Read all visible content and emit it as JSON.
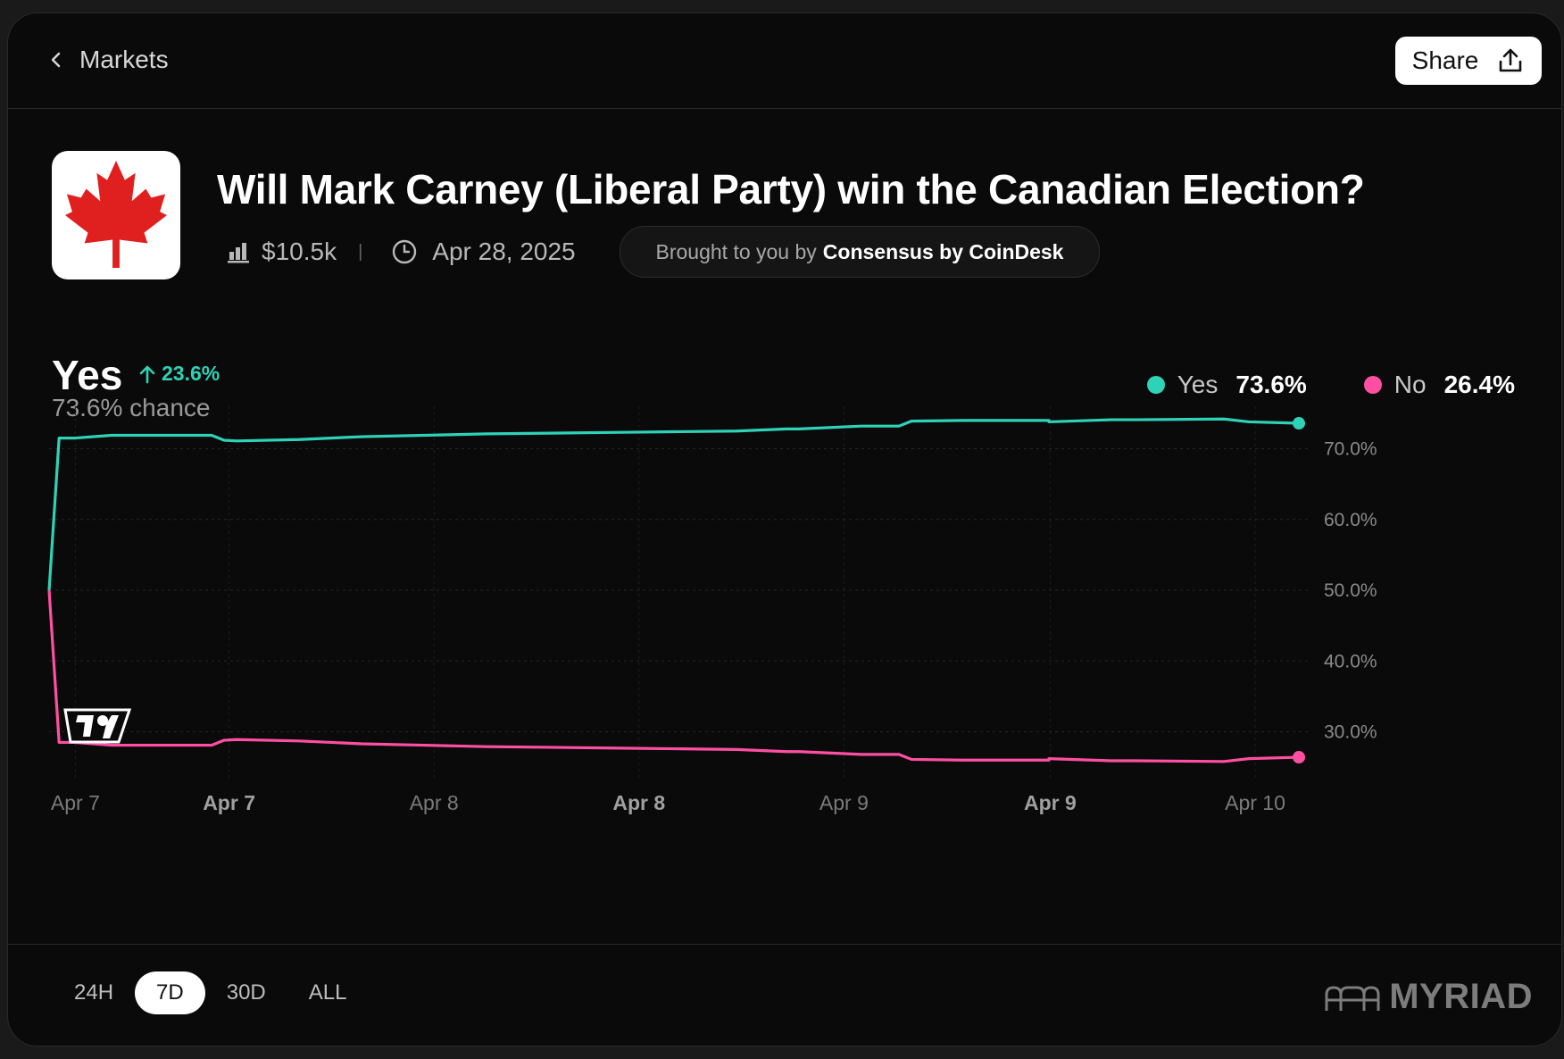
{
  "nav": {
    "back_label": "Markets",
    "share_label": "Share"
  },
  "market": {
    "title": "Will Mark Carney (Liberal Party) win the Canadian Election?",
    "volume": "$10.5k",
    "separator": "|",
    "end_date": "Apr 28, 2025",
    "sponsor_prefix": "Brought to you by",
    "sponsor_name": "Consensus by CoinDesk"
  },
  "summary": {
    "outcome": "Yes",
    "change": "23.6%",
    "chance": "73.6% chance"
  },
  "legend": [
    {
      "label": "Yes",
      "value": "73.6%",
      "color": "#2ed3b7"
    },
    {
      "label": "No",
      "value": "26.4%",
      "color": "#ff4fa3"
    }
  ],
  "ranges": [
    "24H",
    "7D",
    "30D",
    "ALL"
  ],
  "active_range": "7D",
  "brand": "MYRIAD",
  "chart_data": {
    "type": "line",
    "title": "",
    "xlabel": "",
    "ylabel": "",
    "ylim": [
      23,
      76
    ],
    "x": [
      0,
      0.008,
      0.02,
      0.05,
      0.13,
      0.14,
      0.15,
      0.2,
      0.25,
      0.3,
      0.35,
      0.4,
      0.45,
      0.5,
      0.55,
      0.59,
      0.6,
      0.65,
      0.68,
      0.69,
      0.73,
      0.8,
      0.8,
      0.85,
      0.87,
      0.94,
      0.96,
      1.0
    ],
    "x_ticks": [
      {
        "pos": 0.021,
        "label": "Apr 7",
        "bold": false
      },
      {
        "pos": 0.144,
        "label": "Apr 7",
        "bold": true
      },
      {
        "pos": 0.308,
        "label": "Apr 8",
        "bold": false
      },
      {
        "pos": 0.472,
        "label": "Apr 8",
        "bold": true
      },
      {
        "pos": 0.636,
        "label": "Apr 9",
        "bold": false
      },
      {
        "pos": 0.801,
        "label": "Apr 9",
        "bold": true
      },
      {
        "pos": 0.965,
        "label": "Apr 10",
        "bold": false
      }
    ],
    "y_ticks": [
      70,
      60,
      50,
      40,
      30
    ],
    "y_tick_labels": [
      "70.0%",
      "60.0%",
      "50.0%",
      "40.0%",
      "30.0%"
    ],
    "series": [
      {
        "name": "Yes",
        "color": "#2ed3b7",
        "values": [
          50,
          71.5,
          71.5,
          71.9,
          71.9,
          71.2,
          71.1,
          71.3,
          71.7,
          71.9,
          72.1,
          72.2,
          72.3,
          72.4,
          72.5,
          72.8,
          72.8,
          73.2,
          73.2,
          73.9,
          74.0,
          74.0,
          73.8,
          74.1,
          74.1,
          74.2,
          73.8,
          73.6
        ]
      },
      {
        "name": "No",
        "color": "#ff4fa3",
        "values": [
          50,
          28.5,
          28.5,
          28.1,
          28.1,
          28.8,
          28.9,
          28.7,
          28.3,
          28.1,
          27.9,
          27.8,
          27.7,
          27.6,
          27.5,
          27.2,
          27.2,
          26.8,
          26.8,
          26.1,
          26.0,
          26.0,
          26.2,
          25.9,
          25.9,
          25.8,
          26.2,
          26.4
        ]
      }
    ]
  }
}
